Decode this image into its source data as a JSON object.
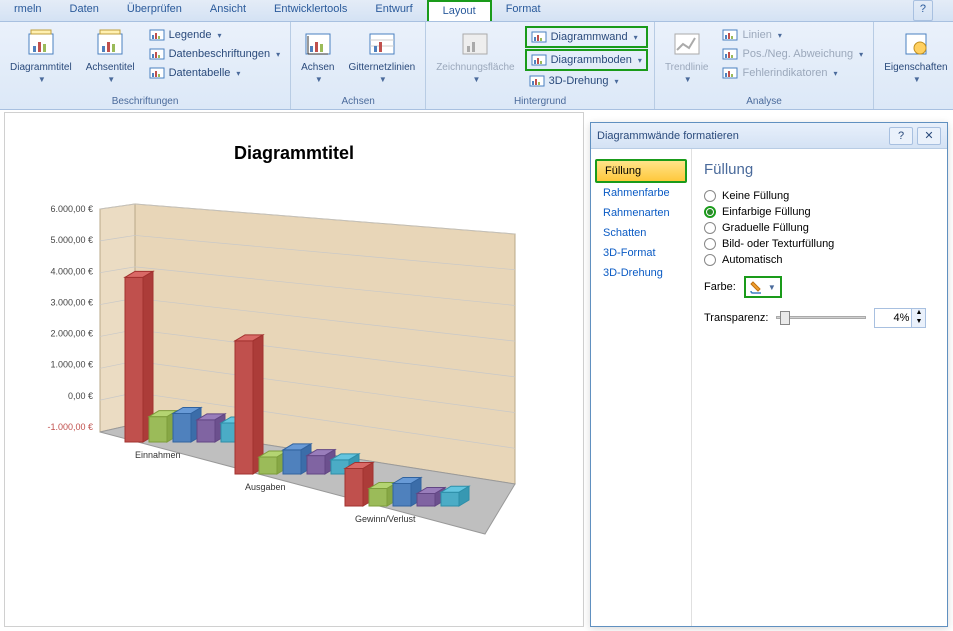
{
  "menu": {
    "tabs": [
      "rmeln",
      "Daten",
      "Überprüfen",
      "Ansicht",
      "Entwicklertools",
      "Entwurf",
      "Layout",
      "Format"
    ],
    "active_index": 6
  },
  "ribbon": {
    "groups": [
      {
        "label": "Beschriftungen",
        "big": [
          {
            "name": "diagrammtitel",
            "label": "Diagrammtitel"
          },
          {
            "name": "achsentitel",
            "label": "Achsentitel"
          }
        ],
        "small": [
          {
            "name": "legende",
            "label": "Legende"
          },
          {
            "name": "datenbeschriftungen",
            "label": "Datenbeschriftungen"
          },
          {
            "name": "datentabelle",
            "label": "Datentabelle"
          }
        ]
      },
      {
        "label": "Achsen",
        "big": [
          {
            "name": "achsen",
            "label": "Achsen"
          },
          {
            "name": "gitternetzlinien",
            "label": "Gitternetzlinien"
          }
        ]
      },
      {
        "label": "Hintergrund",
        "big": [
          {
            "name": "zeichnungsflaeche",
            "label": "Zeichnungsfläche",
            "disabled": true
          }
        ],
        "small": [
          {
            "name": "diagrammwand",
            "label": "Diagrammwand",
            "highlight": true
          },
          {
            "name": "diagrammboden",
            "label": "Diagrammboden",
            "highlight": true
          },
          {
            "name": "3d-drehung",
            "label": "3D-Drehung"
          }
        ]
      },
      {
        "label": "Analyse",
        "big": [
          {
            "name": "trendlinie",
            "label": "Trendlinie",
            "disabled": true
          }
        ],
        "small": [
          {
            "name": "linien",
            "label": "Linien",
            "disabled": true
          },
          {
            "name": "posneg",
            "label": "Pos./Neg. Abweichung",
            "disabled": true
          },
          {
            "name": "fehlerindikatoren",
            "label": "Fehlerindikatoren",
            "disabled": true
          }
        ]
      },
      {
        "label": "",
        "big": [
          {
            "name": "eigenschaften",
            "label": "Eigenschaften"
          }
        ]
      }
    ]
  },
  "chart": {
    "title": "Diagrammtitel",
    "y_ticks": [
      "6.000,00 €",
      "5.000,00 €",
      "4.000,00 €",
      "3.000,00 €",
      "2.000,00 €",
      "1.000,00 €",
      "0,00 €",
      "-1.000,00 €"
    ],
    "categories": [
      "Einnahmen",
      "Ausgaben",
      "Gewinn/Verlust"
    ],
    "wall_color": "#e8d6b8",
    "grid_color": "#c8c8c8",
    "floor_color": "#bfbfbf",
    "series_colors": [
      "#c0504d",
      "#9bbb59",
      "#4f81bd",
      "#8064a2",
      "#4bacc6"
    ],
    "neg_color": "#c0504d",
    "negative_label": "-1.000,00 €",
    "data": [
      [
        5200,
        800,
        900,
        700,
        600
      ],
      [
        4700,
        600,
        850,
        650,
        500
      ],
      [
        1500,
        700,
        900,
        500,
        550
      ]
    ]
  },
  "dialog": {
    "title": "Diagrammwände formatieren",
    "sidebar": [
      "Füllung",
      "Rahmenfarbe",
      "Rahmenarten",
      "Schatten",
      "3D-Format",
      "3D-Drehung"
    ],
    "sidebar_active": 0,
    "heading": "Füllung",
    "radios": [
      {
        "label": "Keine Füllung",
        "checked": false
      },
      {
        "label": "Einfarbige Füllung",
        "checked": true
      },
      {
        "label": "Graduelle Füllung",
        "checked": false
      },
      {
        "label": "Bild- oder Texturfüllung",
        "checked": false
      },
      {
        "label": "Automatisch",
        "checked": false
      }
    ],
    "form": {
      "color_label": "Farbe:",
      "transparency_label": "Transparenz:",
      "transparency_value": "4%"
    }
  }
}
